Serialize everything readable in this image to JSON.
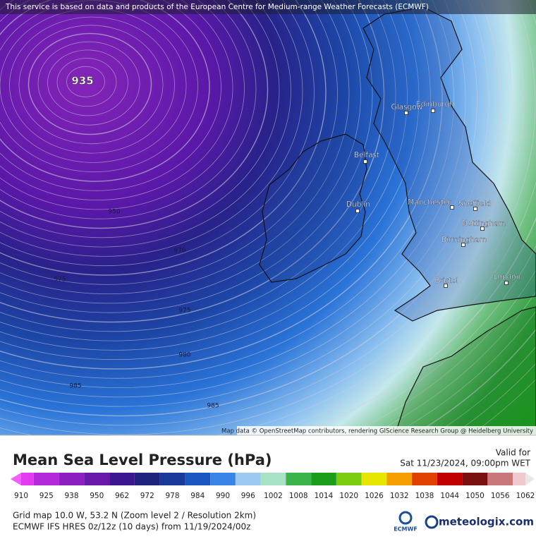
{
  "header": {
    "notice": "This service is based on data and products of the European Centre for Medium-range Weather Forecasts (ECMWF)"
  },
  "map": {
    "low_center_label": "935",
    "isobar_labels": [
      "950",
      "970",
      "975",
      "975",
      "980",
      "985",
      "985"
    ],
    "cities": [
      "Glasgow",
      "Edinburgh",
      "Belfast",
      "Dublin",
      "Manchester",
      "Sheffield",
      "Nottingham",
      "Birmingham",
      "Bristol",
      "London"
    ],
    "attribution": "Map data © OpenStreetMap contributors, rendering GIScience Research Group @ Heidelberg University"
  },
  "legend": {
    "title": "Mean Sea Level Pressure (hPa)",
    "valid_label": "Valid for",
    "valid_time": "Sat 11/23/2024, 09:00pm WET",
    "ticks": [
      910,
      925,
      938,
      950,
      962,
      972,
      978,
      984,
      990,
      996,
      1002,
      1008,
      1014,
      1020,
      1026,
      1032,
      1038,
      1044,
      1050,
      1056,
      1062
    ],
    "colors": [
      "#e33cf0",
      "#b52ad8",
      "#8c1fc0",
      "#6a18a8",
      "#3c1590",
      "#1e237e",
      "#1a3a9a",
      "#1a56c0",
      "#3a84e8",
      "#9cc9f2",
      "#a8e2c4",
      "#3cb44a",
      "#1c9e1c",
      "#7ccc10",
      "#e6e600",
      "#f5a000",
      "#e04000",
      "#c00000",
      "#7a1010",
      "#c87878",
      "#f0c8d0"
    ],
    "end_colors": [
      "#f060ff",
      "#e8e8e8"
    ]
  },
  "footer": {
    "line1": "Grid map 10.0 W, 53.2 N (Zoom level 2 / Resolution 2km)",
    "line2": "ECMWF IFS HRES 0z/12z (10 days) from 11/19/2024/00z",
    "ecmwf_logo": "ECMWF",
    "brand": "meteologix.com"
  }
}
